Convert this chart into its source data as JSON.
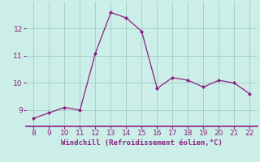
{
  "x": [
    8,
    9,
    10,
    11,
    12,
    13,
    14,
    15,
    16,
    17,
    18,
    19,
    20,
    21,
    22
  ],
  "y": [
    8.7,
    8.9,
    9.1,
    9.0,
    11.1,
    12.6,
    12.4,
    11.9,
    9.8,
    10.2,
    10.1,
    9.85,
    10.1,
    10.0,
    9.6
  ],
  "line_color": "#8b2080",
  "marker_color": "#8b2080",
  "bg_color": "#cceee8",
  "grid_color": "#a0ccc8",
  "xlabel": "Windchill (Refroidissement éolien,°C)",
  "xlabel_color": "#8b2080",
  "xlim": [
    7.5,
    22.5
  ],
  "ylim": [
    8.4,
    13.0
  ],
  "xticks": [
    8,
    9,
    10,
    11,
    12,
    13,
    14,
    15,
    16,
    17,
    18,
    19,
    20,
    21,
    22
  ],
  "yticks": [
    9,
    10,
    11,
    12
  ],
  "tick_color": "#8b2080",
  "spine_color": "#8b2080",
  "title": ""
}
